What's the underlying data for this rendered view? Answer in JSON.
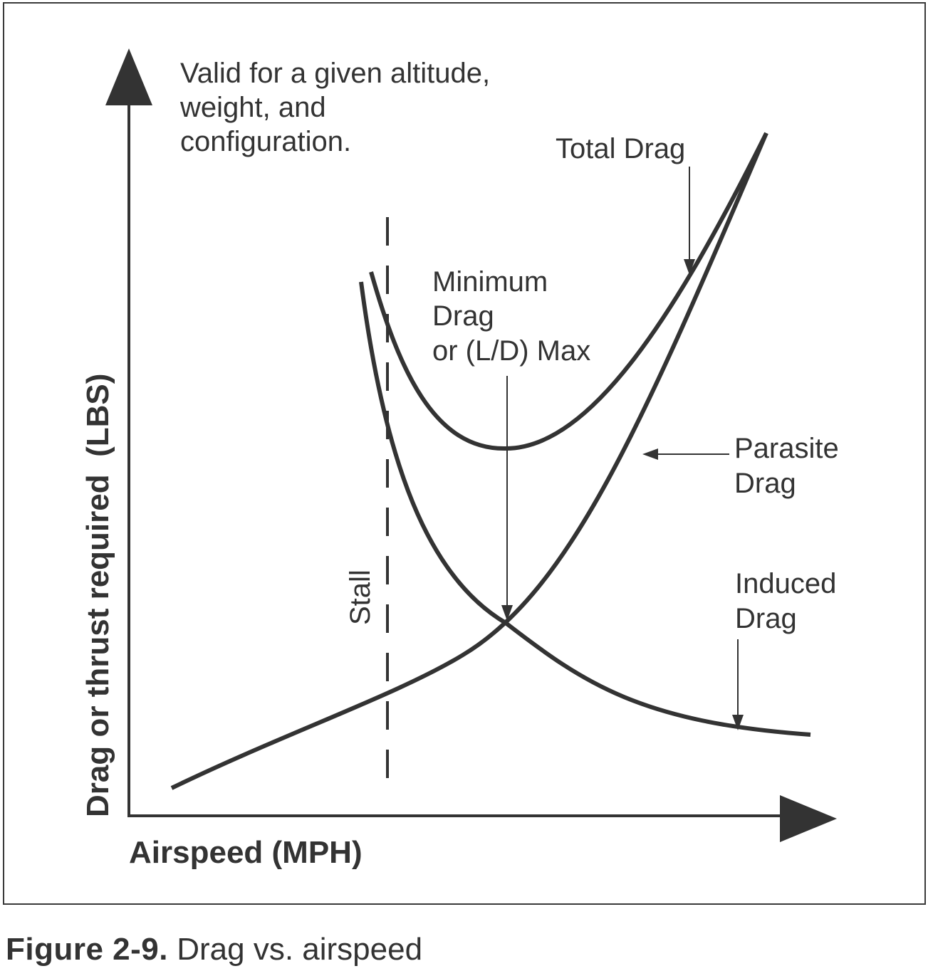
{
  "diagram": {
    "note": [
      "Valid for a given altitude,",
      "weight, and",
      "configuration."
    ],
    "y_axis_label": "Drag or thrust required  (LBS)",
    "x_axis_label": "Airspeed (MPH)",
    "stall_label": "Stall",
    "total_drag_label": "Total Drag",
    "min_drag_label": [
      "Minimum",
      "Drag",
      "or (L/D) Max"
    ],
    "parasite_drag_label": [
      "Parasite",
      "Drag"
    ],
    "induced_drag_label": [
      "Induced",
      "Drag"
    ],
    "colors": {
      "ink": "#333333",
      "background": "#ffffff"
    }
  },
  "caption": {
    "figure_number": "Figure 2-9.",
    "text": " Drag vs. airspeed"
  }
}
